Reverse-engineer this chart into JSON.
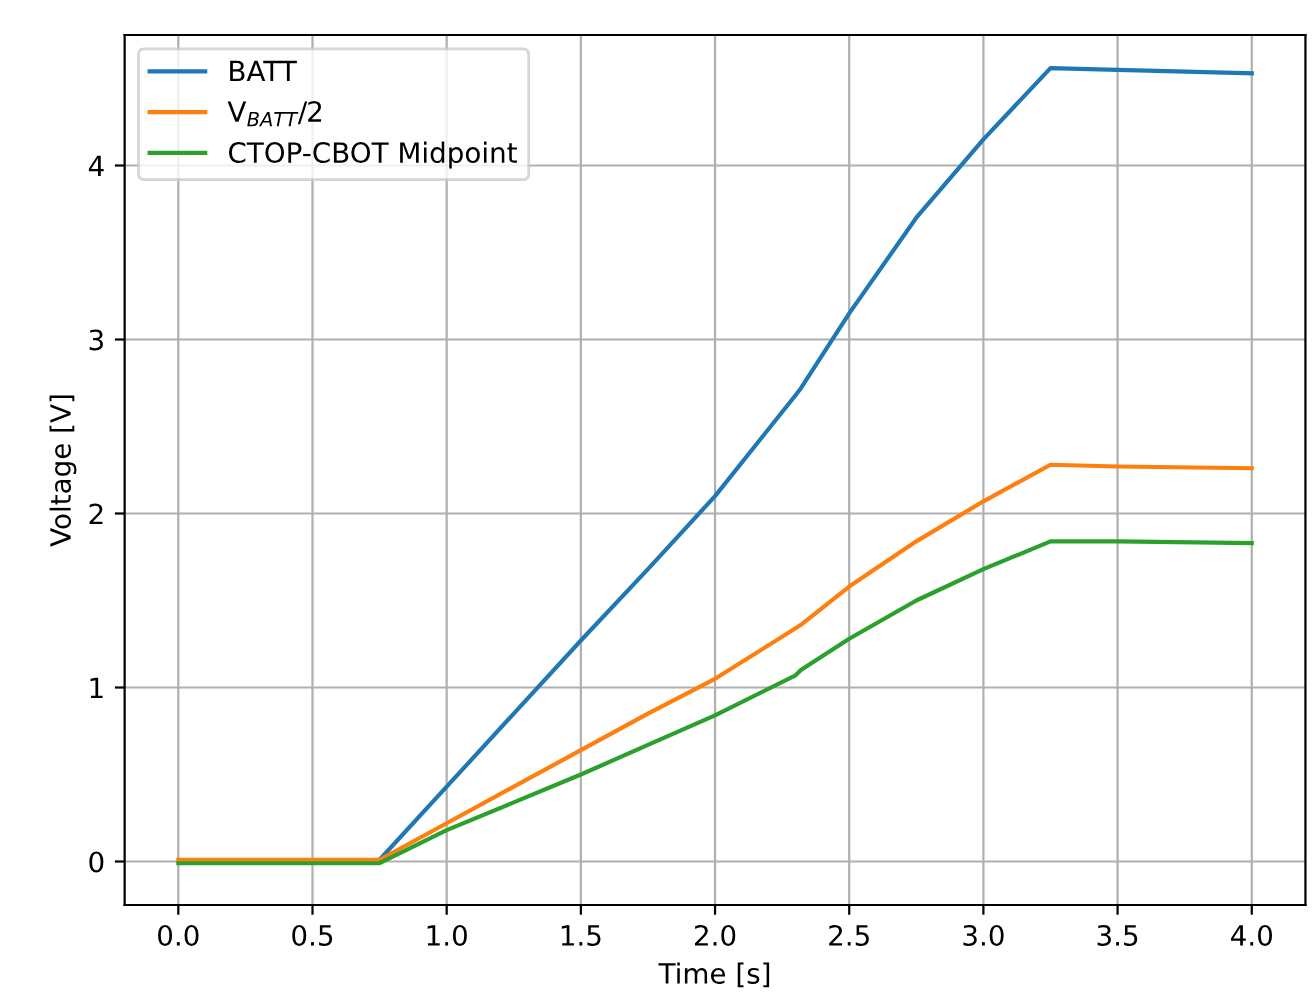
{
  "chart_data": {
    "type": "line",
    "xlabel": "Time [s]",
    "ylabel": "Voltage [V]",
    "xlim": [
      -0.2,
      4.2
    ],
    "ylim": [
      -0.25,
      4.75
    ],
    "xticks": [
      {
        "value": 0,
        "label": "0.0"
      },
      {
        "value": 0.5,
        "label": "0.5"
      },
      {
        "value": 1,
        "label": "1.0"
      },
      {
        "value": 1.5,
        "label": "1.5"
      },
      {
        "value": 2,
        "label": "2.0"
      },
      {
        "value": 2.5,
        "label": "2.5"
      },
      {
        "value": 3,
        "label": "3.0"
      },
      {
        "value": 3.5,
        "label": "3.5"
      },
      {
        "value": 4,
        "label": "4.0"
      }
    ],
    "yticks": [
      0,
      1,
      2,
      3,
      4
    ],
    "x": [
      0,
      0.5,
      0.75,
      1.0,
      1.25,
      1.5,
      1.75,
      2.0,
      2.3,
      2.32,
      2.5,
      2.75,
      3.0,
      3.25,
      3.5,
      4.0
    ],
    "series": [
      {
        "name": "BATT",
        "color": "#1f77b4",
        "values": [
          null,
          null,
          0.01,
          0.43,
          0.85,
          1.27,
          1.68,
          2.1,
          2.68,
          2.72,
          3.15,
          3.7,
          4.15,
          4.56,
          4.55,
          4.53
        ]
      },
      {
        "name": "V$_{BATT}$/2",
        "color": "#ff7f0e",
        "values": [
          0.01,
          0.01,
          0.01,
          0.22,
          0.43,
          0.64,
          0.85,
          1.05,
          1.34,
          1.36,
          1.58,
          1.84,
          2.07,
          2.28,
          2.27,
          2.26
        ]
      },
      {
        "name": "CTOP-CBOT Midpoint",
        "color": "#2ca02c",
        "values": [
          -0.01,
          -0.01,
          -0.01,
          0.18,
          0.34,
          0.5,
          0.67,
          0.84,
          1.07,
          1.1,
          1.28,
          1.5,
          1.68,
          1.84,
          1.84,
          1.83
        ]
      }
    ],
    "grid": true,
    "legend": "top left",
    "line_style": "solid",
    "marker": "none"
  }
}
